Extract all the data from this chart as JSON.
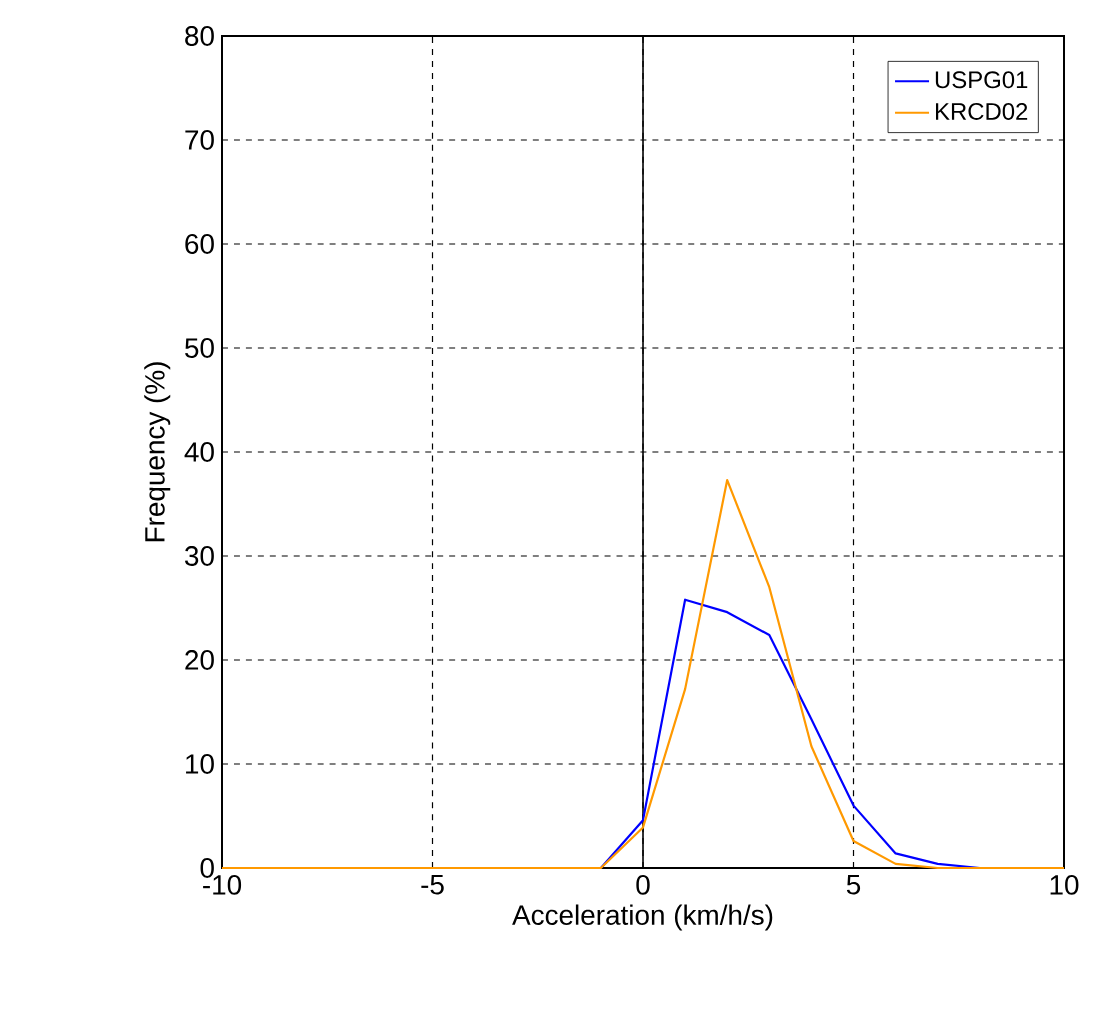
{
  "chart_data": {
    "type": "line",
    "xlabel": "Acceleration (km/h/s)",
    "ylabel": "Frequency (%)",
    "x": [
      -10,
      -9,
      -8,
      -7,
      -6,
      -5,
      -4,
      -3,
      -2,
      -1,
      0,
      1,
      2,
      3,
      4,
      5,
      6,
      7,
      8,
      9,
      10
    ],
    "series": [
      {
        "name": "USPG01",
        "color": "#0000ff",
        "values": [
          null,
          null,
          null,
          null,
          null,
          null,
          null,
          null,
          null,
          0,
          4.6,
          25.8,
          24.6,
          22.4,
          14.3,
          6.0,
          1.4,
          0.4,
          0,
          null,
          null
        ]
      },
      {
        "name": "KRCD02",
        "color": "#ff9900",
        "values": [
          0,
          0,
          0,
          0,
          0,
          0,
          0,
          0,
          0,
          0,
          3.9,
          17.2,
          37.3,
          27.0,
          11.7,
          2.6,
          0.4,
          0,
          0,
          0,
          0
        ]
      }
    ],
    "xlim": [
      -10,
      10
    ],
    "ylim": [
      0,
      80
    ],
    "xticks": [
      -10,
      -5,
      0,
      5,
      10
    ],
    "yticks": [
      0,
      10,
      20,
      30,
      40,
      50,
      60,
      70,
      80
    ],
    "grid": true,
    "legend": "top right",
    "marker": "none",
    "line_style": "solid",
    "ref_lines": [
      {
        "axis": "x",
        "value": 0,
        "color": "#000000",
        "line_style": "solid"
      }
    ]
  }
}
